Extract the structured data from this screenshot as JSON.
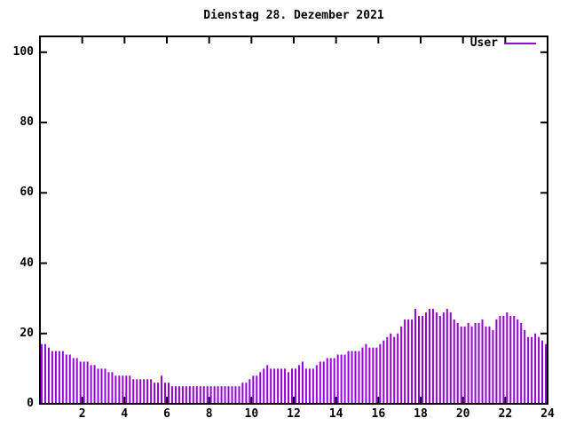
{
  "chart_data": {
    "type": "bar",
    "title": "Dienstag 28. Dezember 2021",
    "xlabel": "",
    "ylabel": "",
    "xlim": [
      0,
      24
    ],
    "ylim": [
      0,
      104.5
    ],
    "xtick_labels": [
      "2",
      "4",
      "6",
      "8",
      "10",
      "12",
      "14",
      "16",
      "18",
      "20",
      "22",
      "24"
    ],
    "xtick_hours": [
      2,
      4,
      6,
      8,
      10,
      12,
      14,
      16,
      18,
      20,
      22,
      24
    ],
    "ytick_labels": [
      "0",
      "20",
      "40",
      "60",
      "80",
      "100"
    ],
    "ytick_values": [
      0,
      20,
      40,
      60,
      80,
      100
    ],
    "grid": false,
    "legend_position": "top-right-inside",
    "x_start_hour": 0,
    "x_step_hours": 0.1666667,
    "series": [
      {
        "name": "User",
        "color": "#9400d3",
        "values": [
          17,
          17,
          16,
          15,
          15,
          15,
          15,
          14,
          14,
          13,
          13,
          12,
          12,
          12,
          11,
          11,
          10,
          10,
          10,
          9,
          9,
          8,
          8,
          8,
          8,
          8,
          7,
          7,
          7,
          7,
          7,
          7,
          6,
          6,
          8,
          6,
          6,
          5,
          5,
          5,
          5,
          5,
          5,
          5,
          5,
          5,
          5,
          5,
          5,
          5,
          5,
          5,
          5,
          5,
          5,
          5,
          5,
          6,
          6,
          7,
          8,
          8,
          9,
          10,
          11,
          10,
          10,
          10,
          10,
          10,
          9,
          10,
          10,
          11,
          12,
          10,
          10,
          10,
          11,
          12,
          12,
          13,
          13,
          13,
          14,
          14,
          14,
          15,
          15,
          15,
          15,
          16,
          17,
          16,
          16,
          16,
          17,
          18,
          19,
          20,
          19,
          20,
          22,
          24,
          24,
          24,
          27,
          25,
          25,
          26,
          27,
          27,
          26,
          25,
          26,
          27,
          26,
          24,
          23,
          22,
          22,
          23,
          22,
          23,
          23,
          24,
          22,
          22,
          21,
          24,
          25,
          25,
          26,
          25,
          25,
          24,
          23,
          21,
          19,
          19,
          20,
          19,
          18,
          17
        ]
      }
    ]
  },
  "colors": {
    "background": "#ffffff",
    "axis": "#000000",
    "text": "#000000"
  }
}
